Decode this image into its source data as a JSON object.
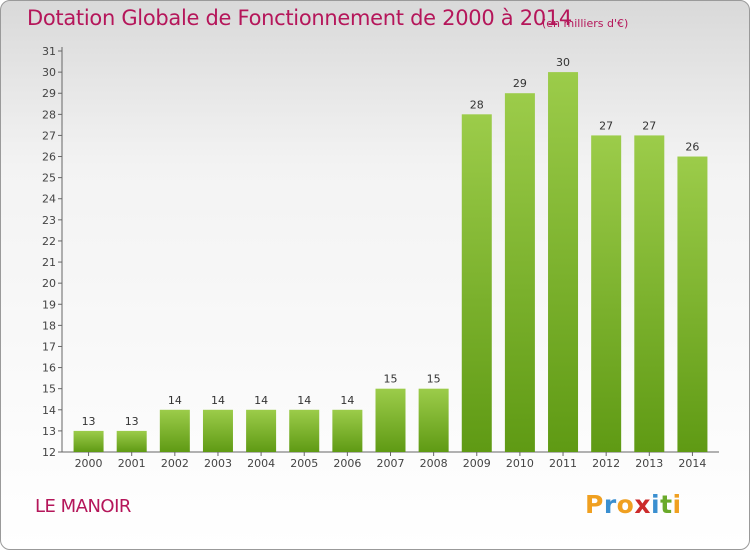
{
  "chart_data": {
    "type": "bar",
    "title": "Dotation Globale de Fonctionnement de 2000 à 2014",
    "subtitle": "(en milliers d'€)",
    "categories": [
      "2000",
      "2001",
      "2002",
      "2003",
      "2004",
      "2005",
      "2006",
      "2007",
      "2008",
      "2009",
      "2010",
      "2011",
      "2012",
      "2013",
      "2014"
    ],
    "values": [
      13,
      13,
      14,
      14,
      14,
      14,
      14,
      15,
      15,
      28,
      29,
      30,
      27,
      27,
      26
    ],
    "ylim": [
      12,
      31
    ],
    "yticks": [
      12,
      13,
      14,
      15,
      16,
      17,
      18,
      19,
      20,
      21,
      22,
      23,
      24,
      25,
      26,
      27,
      28,
      29,
      30,
      31
    ],
    "grid": false,
    "bar_color_top": "#9ccc4a",
    "bar_color_bottom": "#5f9a14",
    "title_color": "#b5165a"
  },
  "footer": {
    "commune": "LE MANOIR",
    "logo_text": "Proxiti",
    "logo_letters": [
      {
        "ch": "P",
        "color": "#f0a020"
      },
      {
        "ch": "r",
        "color": "#3a8fd0"
      },
      {
        "ch": "o",
        "color": "#f0a020"
      },
      {
        "ch": "x",
        "color": "#cc2a2a"
      },
      {
        "ch": "i",
        "color": "#3a8fd0"
      },
      {
        "ch": "t",
        "color": "#6aaa2a"
      },
      {
        "ch": "i",
        "color": "#f0a020"
      }
    ]
  }
}
